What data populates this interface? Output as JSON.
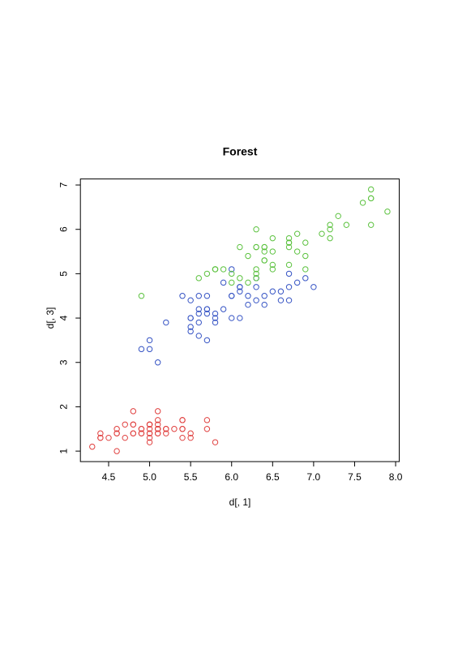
{
  "chart_data": {
    "type": "scatter",
    "title": "Forest",
    "xlabel": "d[, 1]",
    "ylabel": "d[, 3]",
    "xlim": [
      4.156,
      8.044
    ],
    "ylim": [
      0.764,
      7.136
    ],
    "xticks": [
      4.5,
      {
        "value": 5,
        "label": "5.0"
      },
      5.5,
      {
        "value": 6,
        "label": "6.0"
      },
      6.5,
      {
        "value": 7,
        "label": "7.0"
      },
      7.5,
      {
        "value": 8,
        "label": "8.0"
      }
    ],
    "yticks": [
      1,
      2,
      3,
      4,
      5,
      6,
      7
    ],
    "series": [
      {
        "color": "#e0403f",
        "x": [
          5.1,
          4.9,
          4.7,
          4.6,
          5.0,
          5.4,
          4.6,
          5.0,
          4.4,
          4.9,
          5.4,
          4.8,
          4.8,
          4.3,
          5.8,
          5.7,
          5.4,
          5.1,
          5.7,
          5.1,
          5.4,
          5.1,
          4.6,
          5.1,
          4.8,
          5.0,
          5.0,
          5.2,
          5.2,
          4.7,
          4.8,
          5.4,
          5.2,
          5.5,
          4.9,
          5.0,
          5.5,
          4.9,
          4.4,
          5.1,
          5.0,
          4.5,
          4.4,
          5.0,
          5.1,
          4.8,
          5.1,
          4.6,
          5.3,
          5.0
        ],
        "y": [
          1.4,
          1.4,
          1.3,
          1.5,
          1.4,
          1.7,
          1.4,
          1.5,
          1.4,
          1.5,
          1.5,
          1.6,
          1.4,
          1.1,
          1.2,
          1.5,
          1.3,
          1.4,
          1.7,
          1.5,
          1.7,
          1.5,
          1.0,
          1.7,
          1.9,
          1.6,
          1.6,
          1.5,
          1.4,
          1.6,
          1.6,
          1.5,
          1.5,
          1.4,
          1.5,
          1.2,
          1.3,
          1.4,
          1.3,
          1.5,
          1.3,
          1.3,
          1.3,
          1.6,
          1.9,
          1.4,
          1.6,
          1.4,
          1.5,
          1.4
        ]
      },
      {
        "color": "#3553c4",
        "x": [
          7.0,
          6.4,
          6.9,
          5.5,
          6.5,
          5.7,
          6.3,
          4.9,
          6.6,
          5.2,
          5.0,
          5.9,
          6.0,
          6.1,
          5.6,
          6.7,
          5.6,
          5.8,
          6.2,
          5.6,
          5.9,
          6.1,
          6.3,
          6.1,
          6.4,
          6.6,
          6.8,
          6.7,
          6.0,
          5.7,
          5.5,
          5.5,
          5.8,
          6.0,
          5.4,
          6.0,
          6.7,
          6.3,
          5.6,
          5.5,
          5.5,
          6.1,
          5.8,
          5.0,
          5.6,
          5.7,
          5.7,
          6.2,
          5.1,
          5.7
        ],
        "y": [
          4.7,
          4.5,
          4.9,
          4.0,
          4.6,
          4.5,
          4.7,
          3.3,
          4.6,
          3.9,
          3.5,
          4.2,
          4.0,
          4.7,
          3.6,
          4.4,
          4.5,
          4.1,
          4.5,
          3.9,
          4.8,
          4.0,
          4.9,
          4.7,
          4.3,
          4.4,
          4.8,
          5.0,
          4.5,
          3.5,
          3.8,
          3.7,
          3.9,
          5.1,
          4.5,
          4.5,
          4.7,
          4.4,
          4.1,
          4.0,
          4.4,
          4.6,
          4.0,
          3.3,
          4.2,
          4.2,
          4.2,
          4.3,
          3.0,
          4.1
        ]
      },
      {
        "color": "#5cc23f",
        "x": [
          6.3,
          5.8,
          7.1,
          6.3,
          6.5,
          7.6,
          4.9,
          7.3,
          6.7,
          7.2,
          6.5,
          6.4,
          6.8,
          5.7,
          5.8,
          6.4,
          6.5,
          7.7,
          7.7,
          6.0,
          6.9,
          5.6,
          7.7,
          6.3,
          6.7,
          7.2,
          6.2,
          6.1,
          6.4,
          7.2,
          7.4,
          7.9,
          6.4,
          6.3,
          6.1,
          7.7,
          6.3,
          6.4,
          6.0,
          6.9,
          6.7,
          6.9,
          5.8,
          6.8,
          6.7,
          6.7,
          6.3,
          6.5,
          6.2,
          5.9
        ],
        "y": [
          6.0,
          5.1,
          5.9,
          5.6,
          5.8,
          6.6,
          4.5,
          6.3,
          5.8,
          6.1,
          5.1,
          5.3,
          5.5,
          5.0,
          5.1,
          5.3,
          5.5,
          6.7,
          6.9,
          5.0,
          5.7,
          4.9,
          6.7,
          4.9,
          5.7,
          6.0,
          4.8,
          4.9,
          5.6,
          5.8,
          6.1,
          6.4,
          5.6,
          5.1,
          5.6,
          6.1,
          5.6,
          5.5,
          4.8,
          5.4,
          5.6,
          5.1,
          5.1,
          5.9,
          5.7,
          5.2,
          5.0,
          5.2,
          5.4,
          5.1
        ]
      }
    ]
  }
}
